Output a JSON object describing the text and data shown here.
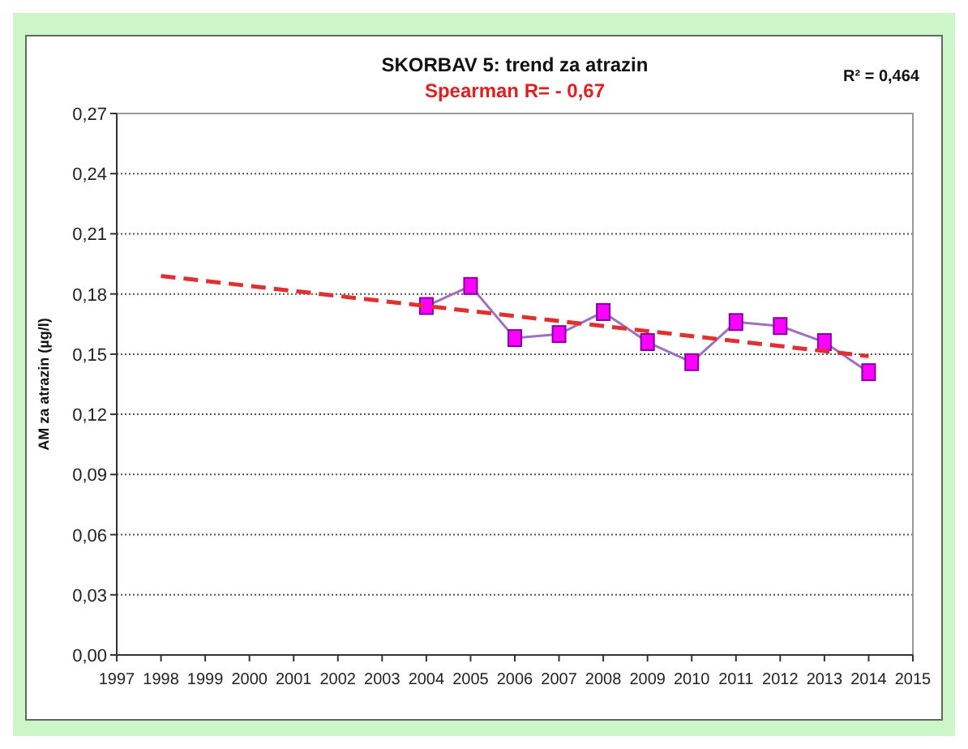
{
  "chart_data": {
    "type": "line",
    "title": "SKORBAV 5: trend za atrazin",
    "subtitle": "Spearman R= - 0,67",
    "ylabel": "AM za atrazin (µg/l)",
    "annotations": [
      "R² = 0,464"
    ],
    "x": [
      2004,
      2005,
      2006,
      2007,
      2008,
      2009,
      2010,
      2011,
      2012,
      2013,
      2014
    ],
    "series": [
      {
        "color": "#a070c0",
        "marker": "square",
        "line_style": "solid",
        "values": [
          0.174,
          0.184,
          0.158,
          0.16,
          0.171,
          0.156,
          0.146,
          0.166,
          0.164,
          0.156,
          0.141
        ]
      },
      {
        "color": "#e03030",
        "marker": "none",
        "line_style": "dashed",
        "x": [
          1998,
          2014
        ],
        "values": [
          0.189,
          0.149
        ]
      }
    ],
    "xlim": [
      1997,
      2015
    ],
    "xticks": [
      1997,
      1998,
      1999,
      2000,
      2001,
      2002,
      2003,
      2004,
      2005,
      2006,
      2007,
      2008,
      2009,
      2010,
      2011,
      2012,
      2013,
      2014,
      2015
    ],
    "ylim": [
      0,
      0.27
    ],
    "yticks": [
      {
        "value": 0,
        "label": "0,00"
      },
      {
        "value": 0.03,
        "label": "0,03"
      },
      {
        "value": 0.06,
        "label": "0,06"
      },
      {
        "value": 0.09,
        "label": "0,09"
      },
      {
        "value": 0.12,
        "label": "0,12"
      },
      {
        "value": 0.15,
        "label": "0,15"
      },
      {
        "value": 0.18,
        "label": "0,18"
      },
      {
        "value": 0.21,
        "label": "0,21"
      },
      {
        "value": 0.24,
        "label": "0,24"
      },
      {
        "value": 0.27,
        "label": "0,27"
      }
    ],
    "grid": "y"
  }
}
